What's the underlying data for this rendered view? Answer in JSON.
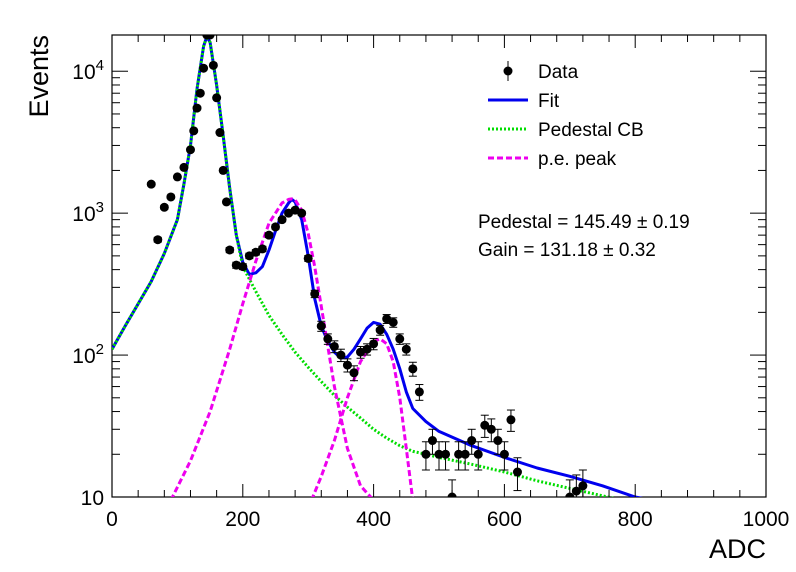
{
  "chart_data": {
    "type": "scatter",
    "xlabel": "ADC",
    "ylabel": "Events",
    "xlim": [
      0,
      1000
    ],
    "ylim": [
      10,
      18000
    ],
    "yscale": "log",
    "grid": false,
    "legend_position": "top-right",
    "x_ticks": [
      0,
      200,
      400,
      600,
      800,
      1000
    ],
    "x_tick_labels": [
      "0",
      "200",
      "400",
      "600",
      "800",
      "1000"
    ],
    "y_ticks": [
      10,
      100,
      1000,
      10000
    ],
    "y_tick_labels": [
      "10",
      "10^2",
      "10^3",
      "10^4"
    ],
    "legend": [
      {
        "label": "Data",
        "style": "marker",
        "color": "#000000"
      },
      {
        "label": "Fit",
        "style": "solid",
        "color": "#0000ee"
      },
      {
        "label": "Pedestal CB",
        "style": "dotted",
        "color": "#00dd00"
      },
      {
        "label": "p.e. peak",
        "style": "dashed",
        "color": "#ee00ee"
      }
    ],
    "annotations": [
      "Pedestal = 145.49 ± 0.19",
      "Gain = 131.18 ± 0.32"
    ],
    "series": [
      {
        "name": "Data",
        "kind": "points",
        "color": "#000000",
        "x": [
          60,
          70,
          80,
          90,
          100,
          110,
          120,
          125,
          130,
          135,
          140,
          145,
          150,
          155,
          160,
          165,
          170,
          175,
          180,
          190,
          200,
          210,
          220,
          230,
          240,
          250,
          260,
          270,
          280,
          290,
          300,
          310,
          320,
          330,
          340,
          350,
          360,
          370,
          380,
          390,
          400,
          410,
          420,
          430,
          440,
          450,
          460,
          470,
          480,
          490,
          500,
          510,
          520,
          530,
          540,
          550,
          560,
          570,
          580,
          590,
          600,
          610,
          620,
          700,
          710,
          720
        ],
        "y": [
          1600,
          650,
          1100,
          1300,
          1800,
          2100,
          2800,
          3800,
          5500,
          7000,
          10500,
          18000,
          18000,
          11000,
          6500,
          3700,
          2000,
          1200,
          550,
          430,
          420,
          500,
          530,
          560,
          700,
          800,
          900,
          1000,
          1050,
          1000,
          480,
          270,
          160,
          130,
          115,
          100,
          85,
          75,
          105,
          110,
          120,
          150,
          180,
          170,
          130,
          110,
          80,
          55,
          20,
          25,
          20,
          20,
          10,
          20,
          20,
          25,
          20,
          32,
          30,
          25,
          20,
          35,
          15,
          10,
          11,
          12
        ],
        "yerr": [
          40,
          25,
          33,
          36,
          42,
          46,
          53,
          62,
          74,
          84,
          102,
          134,
          134,
          105,
          81,
          61,
          45,
          35,
          23,
          21,
          20,
          22,
          23,
          24,
          26,
          28,
          30,
          32,
          32,
          32,
          22,
          16,
          13,
          11,
          11,
          10,
          9,
          9,
          10,
          10,
          11,
          12,
          13,
          13,
          11,
          10,
          9,
          7,
          4.5,
          5,
          4.5,
          4.5,
          3.2,
          4.5,
          4.5,
          5,
          4.5,
          5.7,
          5.5,
          5,
          4.5,
          6,
          3.9,
          3.2,
          3.3,
          3.5
        ]
      },
      {
        "name": "Fit",
        "kind": "line",
        "color": "#0000ee",
        "x": [
          0,
          20,
          40,
          60,
          80,
          100,
          110,
          120,
          130,
          140,
          145,
          150,
          160,
          170,
          180,
          190,
          200,
          210,
          220,
          230,
          240,
          250,
          260,
          270,
          275,
          280,
          290,
          300,
          310,
          320,
          330,
          340,
          350,
          360,
          370,
          380,
          390,
          400,
          410,
          420,
          430,
          440,
          450,
          460,
          480,
          500,
          550,
          600,
          650,
          700,
          750,
          800,
          825
        ],
        "y": [
          110,
          160,
          230,
          330,
          520,
          900,
          1600,
          3000,
          7500,
          15000,
          17500,
          16000,
          8000,
          3500,
          1500,
          700,
          450,
          370,
          380,
          420,
          550,
          750,
          1000,
          1180,
          1250,
          1200,
          900,
          500,
          250,
          160,
          125,
          105,
          95,
          97,
          110,
          130,
          155,
          170,
          165,
          140,
          110,
          80,
          55,
          42,
          34,
          29,
          23,
          19,
          16,
          14,
          12,
          10,
          9.5
        ]
      },
      {
        "name": "Pedestal CB",
        "kind": "line",
        "color": "#00dd00",
        "x": [
          0,
          20,
          40,
          60,
          80,
          100,
          110,
          120,
          130,
          140,
          145,
          150,
          160,
          170,
          180,
          190,
          200,
          220,
          240,
          260,
          280,
          300,
          320,
          340,
          360,
          380,
          400,
          420,
          440,
          460,
          480,
          500,
          550,
          600,
          650,
          700,
          750,
          780
        ],
        "y": [
          110,
          160,
          230,
          330,
          520,
          900,
          1600,
          3000,
          7500,
          15000,
          17500,
          16000,
          8000,
          3500,
          1500,
          700,
          420,
          280,
          190,
          140,
          105,
          82,
          65,
          52,
          43,
          36,
          30,
          26,
          23,
          21,
          20,
          19,
          17,
          15,
          13,
          11.5,
          10.2,
          9.5
        ]
      },
      {
        "name": "p.e. peak",
        "kind": "line",
        "color": "#ee00ee",
        "x": [
          90,
          120,
          150,
          180,
          200,
          220,
          240,
          260,
          270,
          275,
          280,
          290,
          300,
          310,
          320,
          340,
          360,
          380,
          400
        ],
        "y": [
          9.5,
          18,
          40,
          110,
          230,
          460,
          850,
          1180,
          1250,
          1260,
          1240,
          1050,
          720,
          420,
          220,
          60,
          22,
          12,
          9.5
        ]
      },
      {
        "name": "p.e. peak",
        "kind": "line",
        "color": "#ee00ee",
        "x": [
          305,
          320,
          340,
          360,
          380,
          400,
          410,
          420,
          430,
          440,
          450,
          460
        ],
        "y": [
          9.5,
          14,
          25,
          50,
          90,
          125,
          130,
          120,
          90,
          50,
          22,
          9.5
        ]
      }
    ]
  }
}
